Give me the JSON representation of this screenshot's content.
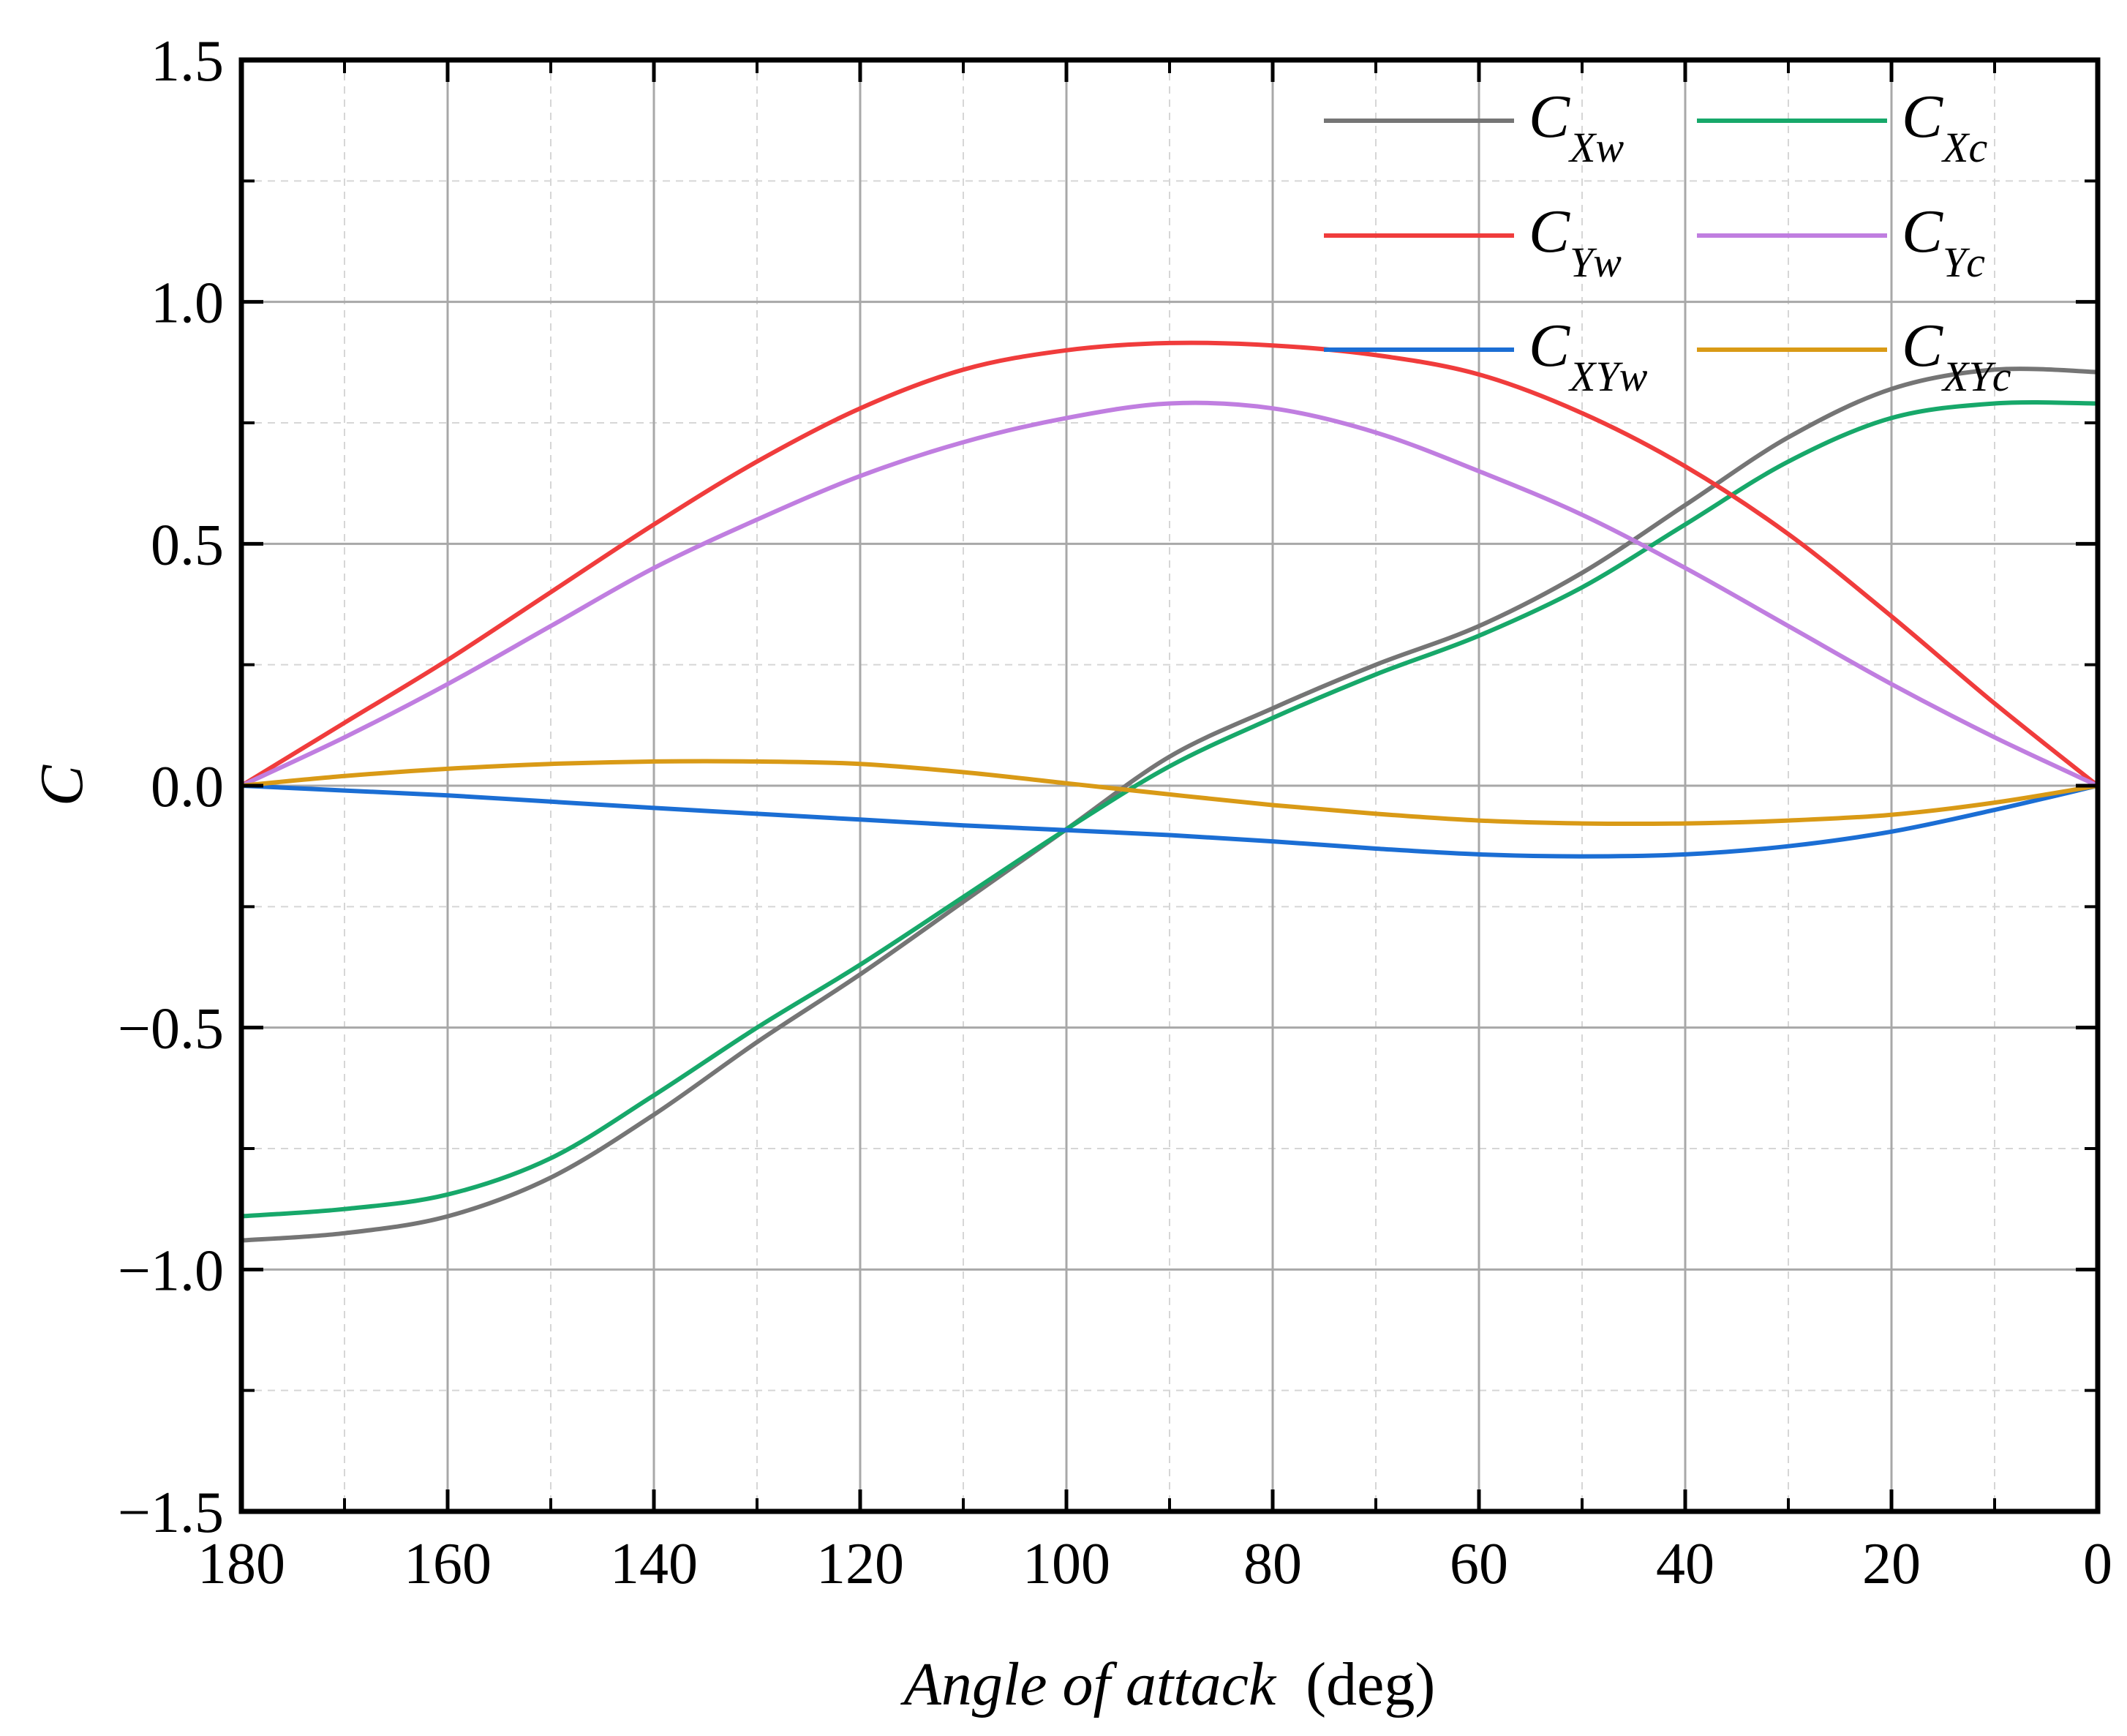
{
  "chart_data": {
    "type": "line",
    "xlabel_italic": "Angle of attack",
    "xlabel_unit": "(deg)",
    "ylabel": "C",
    "xlim": [
      180,
      0
    ],
    "ylim": [
      -1.5,
      1.5
    ],
    "x_ticks": [
      180,
      160,
      140,
      120,
      100,
      80,
      60,
      40,
      20,
      0
    ],
    "x_tick_labels": [
      "180",
      "160",
      "140",
      "120",
      "100",
      "80",
      "60",
      "40",
      "20",
      "0"
    ],
    "x_minor_ticks": [
      170,
      150,
      130,
      110,
      90,
      70,
      50,
      30,
      10
    ],
    "y_ticks": [
      1.5,
      1.0,
      0.5,
      0.0,
      -0.5,
      -1.0,
      -1.5
    ],
    "y_tick_labels": [
      "1.5",
      "1.0",
      "0.5",
      "0.0",
      "−0.5",
      "−1.0",
      "−1.5"
    ],
    "y_minor_ticks": [
      1.25,
      0.75,
      0.25,
      -0.25,
      -0.75,
      -1.25
    ],
    "grid": true,
    "legend_position": "top-right",
    "x": [
      180,
      170,
      160,
      150,
      140,
      130,
      120,
      110,
      100,
      90,
      80,
      70,
      60,
      50,
      40,
      30,
      20,
      10,
      0
    ],
    "series": [
      {
        "name": "C_Xw",
        "label_main": "C",
        "label_sub": "Xw",
        "color": "#757575",
        "values": [
          -0.94,
          -0.925,
          -0.89,
          -0.81,
          -0.68,
          -0.53,
          -0.39,
          -0.24,
          -0.09,
          0.06,
          0.16,
          0.25,
          0.33,
          0.44,
          0.58,
          0.72,
          0.82,
          0.86,
          0.855
        ]
      },
      {
        "name": "C_Xc",
        "label_main": "C",
        "label_sub": "Xc",
        "color": "#17a86a",
        "values": [
          -0.89,
          -0.875,
          -0.845,
          -0.77,
          -0.64,
          -0.5,
          -0.37,
          -0.23,
          -0.09,
          0.04,
          0.14,
          0.23,
          0.31,
          0.41,
          0.54,
          0.67,
          0.76,
          0.79,
          0.79
        ]
      },
      {
        "name": "C_Yw",
        "label_main": "C",
        "label_sub": "Yw",
        "color": "#f03c3c",
        "values": [
          0.0,
          0.13,
          0.26,
          0.4,
          0.54,
          0.67,
          0.78,
          0.86,
          0.9,
          0.915,
          0.91,
          0.89,
          0.85,
          0.77,
          0.66,
          0.52,
          0.35,
          0.17,
          0.0
        ]
      },
      {
        "name": "C_Yc",
        "label_main": "C",
        "label_sub": "Yc",
        "color": "#c07ee0",
        "values": [
          0.0,
          0.1,
          0.21,
          0.33,
          0.45,
          0.55,
          0.64,
          0.71,
          0.76,
          0.79,
          0.78,
          0.73,
          0.65,
          0.56,
          0.45,
          0.33,
          0.21,
          0.1,
          0.0
        ]
      },
      {
        "name": "C_XYw",
        "label_main": "C",
        "label_sub": "XYw",
        "color": "#1b6ed4",
        "values": [
          0.0,
          -0.01,
          -0.02,
          -0.033,
          -0.046,
          -0.058,
          -0.07,
          -0.082,
          -0.092,
          -0.102,
          -0.115,
          -0.13,
          -0.142,
          -0.146,
          -0.142,
          -0.125,
          -0.095,
          -0.05,
          0.0
        ]
      },
      {
        "name": "C_XYc",
        "label_main": "C",
        "label_sub": "XYc",
        "color": "#d99a16",
        "values": [
          0.0,
          0.02,
          0.035,
          0.045,
          0.05,
          0.05,
          0.045,
          0.028,
          0.005,
          -0.018,
          -0.04,
          -0.058,
          -0.072,
          -0.078,
          -0.078,
          -0.072,
          -0.06,
          -0.035,
          0.0
        ]
      }
    ]
  }
}
